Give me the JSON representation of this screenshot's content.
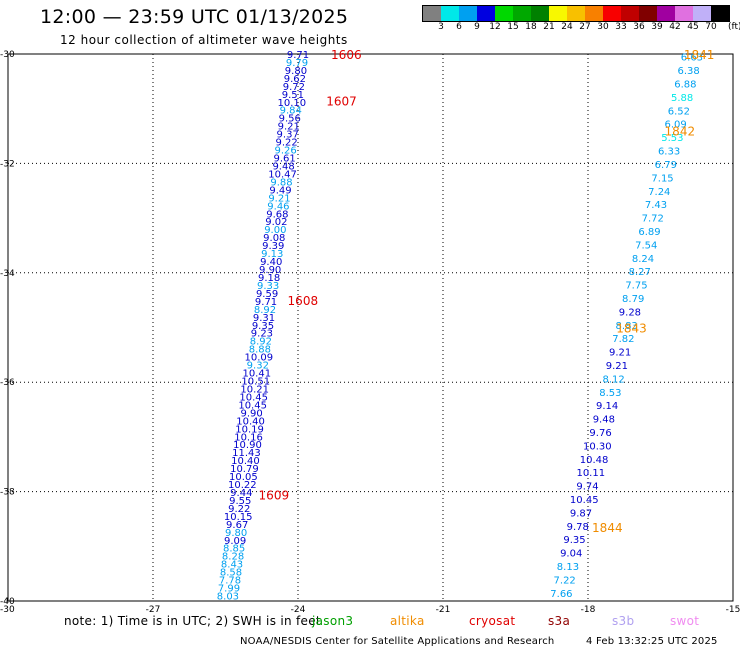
{
  "header": {
    "title": "12:00 — 23:59 UTC 01/13/2025",
    "subtitle": "12 hour collection of altimeter wave heights"
  },
  "colorbar": {
    "unit": "(ft)",
    "colors": [
      "#808080",
      "#00e8e8",
      "#00a0f0",
      "#0000e0",
      "#00d800",
      "#00a800",
      "#008000",
      "#f8f800",
      "#f8c000",
      "#f88000",
      "#f80000",
      "#c00000",
      "#800000",
      "#a000a0",
      "#e070e0",
      "#c0b0f8",
      "#000000"
    ],
    "labels": [
      "3",
      "6",
      "9",
      "12",
      "15",
      "18",
      "21",
      "24",
      "27",
      "30",
      "33",
      "36",
      "39",
      "42",
      "45",
      "70"
    ]
  },
  "map": {
    "x_ticks": [
      "-27",
      "-24",
      "-21",
      "-18",
      "-15"
    ],
    "y_ticks": [
      "-30",
      "-32",
      "-34",
      "-36",
      "-38",
      "-40"
    ],
    "corner_label": "-30"
  },
  "chart_data": {
    "type": "scatter",
    "xlabel": "",
    "ylabel": "",
    "xlim": [
      -30,
      -15
    ],
    "ylim": [
      -40,
      -30
    ],
    "grid": true,
    "pass_labels": [
      {
        "id": "1606",
        "lon": -23.0,
        "lat": -30.0,
        "color": "#e00000"
      },
      {
        "id": "1607",
        "lon": -23.1,
        "lat": -30.85,
        "color": "#e00000"
      },
      {
        "id": "1608",
        "lon": -23.9,
        "lat": -34.5,
        "color": "#e00000"
      },
      {
        "id": "1609",
        "lon": -24.5,
        "lat": -38.05,
        "color": "#e00000"
      },
      {
        "id": "1841",
        "lon": -15.7,
        "lat": -30.0,
        "color": "#f08c00"
      },
      {
        "id": "1842",
        "lon": -16.1,
        "lat": -31.4,
        "color": "#f08c00"
      },
      {
        "id": "1843",
        "lon": -17.1,
        "lat": -35.0,
        "color": "#f08c00"
      },
      {
        "id": "1844",
        "lon": -17.6,
        "lat": -38.65,
        "color": "#f08c00"
      }
    ],
    "tracks": [
      {
        "lon_start": -24.0,
        "lat_start": -30.0,
        "lon_end": -25.45,
        "lat_end": -39.9,
        "values": [
          "9.71",
          "9.79",
          "9.80",
          "9.62",
          "9.72",
          "9.51",
          "10.10",
          "9.84",
          "9.56",
          "9.21",
          "9.37",
          "9.22",
          "9.26",
          "9.61",
          "9.48",
          "10.47",
          "9.88",
          "9.49",
          "9.21",
          "9.46",
          "9.68",
          "9.02",
          "9.00",
          "9.08",
          "9.39",
          "9.13",
          "9.40",
          "9.90",
          "9.18",
          "9.33",
          "9.59",
          "9.71",
          "8.92",
          "9.31",
          "9.35",
          "9.23",
          "8.92",
          "8.88",
          "10.09",
          "9.32",
          "10.41",
          "10.51",
          "10.21",
          "10.45",
          "10.45",
          "9.90",
          "10.40",
          "10.19",
          "10.16",
          "10.90",
          "11.43",
          "10.40",
          "10.79",
          "10.05",
          "10.22",
          "9.44",
          "9.55",
          "9.22",
          "10.15",
          "9.67",
          "9.80",
          "9.09",
          "8.85",
          "8.28",
          "8.43",
          "8.58",
          "7.78",
          "7.99",
          "8.03"
        ],
        "colors": [
          "#0000cc",
          "#00a0f0",
          "#0000cc",
          "#0000cc",
          "#0000cc",
          "#0000cc",
          "#0000cc",
          "#00a0f0",
          "#0000cc",
          "#0000cc",
          "#0000cc",
          "#0000cc",
          "#00a0f0",
          "#0000cc",
          "#0000cc",
          "#0000cc",
          "#00a0f0",
          "#0000cc",
          "#00a0f0",
          "#00a0f0",
          "#0000cc",
          "#0000cc",
          "#00a0f0",
          "#0000cc",
          "#0000cc",
          "#00a0f0",
          "#0000cc",
          "#0000cc",
          "#0000cc",
          "#00a0f0",
          "#0000cc",
          "#0000cc",
          "#00a0f0",
          "#0000cc",
          "#0000cc",
          "#0000cc",
          "#00a0f0",
          "#00a0f0",
          "#0000cc",
          "#00a0f0",
          "#0000cc",
          "#0000cc",
          "#0000cc",
          "#0000cc",
          "#0000cc",
          "#0000cc",
          "#0000cc",
          "#0000cc",
          "#0000cc",
          "#0000cc",
          "#0000cc",
          "#0000cc",
          "#0000cc",
          "#0000cc",
          "#0000cc",
          "#0000cc",
          "#0000cc",
          "#0000cc",
          "#0000cc",
          "#0000cc",
          "#00a0f0",
          "#0000cc",
          "#00a0f0",
          "#00a0f0",
          "#00a0f0",
          "#00a0f0",
          "#00a0f0",
          "#00a0f0",
          "#00a0f0"
        ]
      },
      {
        "lon_start": -15.85,
        "lat_start": -30.05,
        "lon_end": -18.55,
        "lat_end": -39.85,
        "values": [
          "6.63",
          "6.38",
          "6.88",
          "5.88",
          "6.52",
          "6.09",
          "5.53",
          "6.33",
          "6.79",
          "7.15",
          "7.24",
          "7.43",
          "7.72",
          "6.89",
          "7.54",
          "8.24",
          "8.27",
          "7.75",
          "8.79",
          "9.28",
          "8.83",
          "7.82",
          "9.21",
          "9.21",
          "8.12",
          "8.53",
          "9.14",
          "9.48",
          "9.76",
          "10.30",
          "10.48",
          "10.11",
          "9.74",
          "10.45",
          "9.87",
          "9.78",
          "9.35",
          "9.04",
          "8.13",
          "7.22",
          "7.66"
        ],
        "colors": [
          "#00a0f0",
          "#00a0f0",
          "#00a0f0",
          "#00e8e8",
          "#00a0f0",
          "#00a0f0",
          "#00e8e8",
          "#00a0f0",
          "#00a0f0",
          "#00a0f0",
          "#00a0f0",
          "#00a0f0",
          "#00a0f0",
          "#00a0f0",
          "#00a0f0",
          "#00a0f0",
          "#00a0f0",
          "#00a0f0",
          "#00a0f0",
          "#0000cc",
          "#00a0f0",
          "#00a0f0",
          "#0000cc",
          "#0000cc",
          "#00a0f0",
          "#00a0f0",
          "#0000cc",
          "#0000cc",
          "#0000cc",
          "#0000cc",
          "#0000cc",
          "#0000cc",
          "#0000cc",
          "#0000cc",
          "#0000cc",
          "#0000cc",
          "#0000cc",
          "#0000cc",
          "#00a0f0",
          "#00a0f0",
          "#00a0f0"
        ]
      }
    ]
  },
  "footer": {
    "note": "note: 1) Time is in UTC; 2) SWH is in feet",
    "satellites": [
      {
        "name": "jason3",
        "color": "#00a000"
      },
      {
        "name": "altika",
        "color": "#f08c00"
      },
      {
        "name": "cryosat",
        "color": "#e00000"
      },
      {
        "name": "s3a",
        "color": "#900000"
      },
      {
        "name": "s3b",
        "color": "#b0a0f0"
      },
      {
        "name": "swot",
        "color": "#f08cf0"
      }
    ],
    "credit": "NOAA/NESDIS Center for Satellite Applications and Research",
    "timestamp": "4 Feb 13:32:25 UTC 2025"
  }
}
